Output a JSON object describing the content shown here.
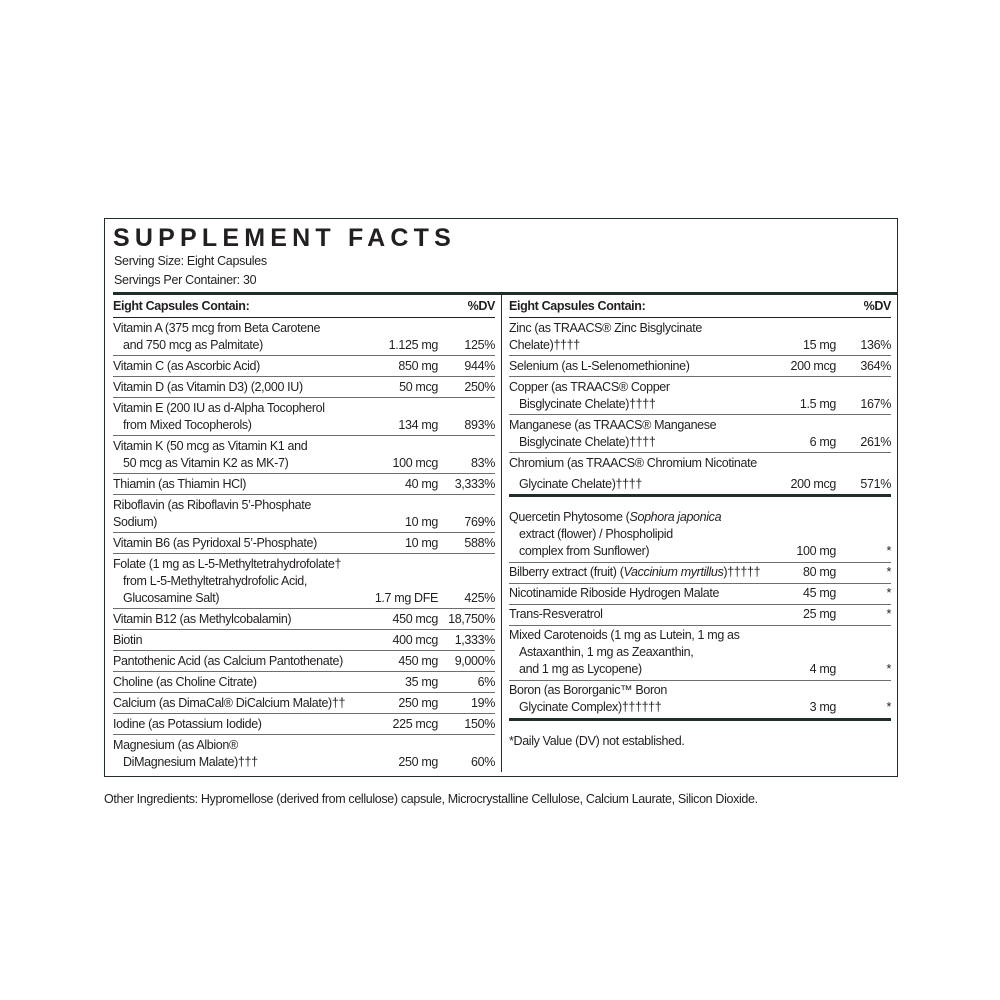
{
  "title": "SUPPLEMENT FACTS",
  "serving_size": "Serving Size: Eight Capsules",
  "servings_per_container": "Servings Per Container: 30",
  "left": {
    "header_label": "Eight Capsules Contain:",
    "header_dv": "%DV",
    "rows": [
      {
        "lines": [
          [
            {
              "t": "Vitamin A (375 mcg from Beta Carotene"
            }
          ],
          [
            {
              "t": "and 750 mcg as Palmitate)"
            }
          ]
        ],
        "amount": "1.125 mg",
        "dv": "125%"
      },
      {
        "lines": [
          [
            {
              "t": "Vitamin C (as Ascorbic Acid)"
            }
          ]
        ],
        "amount": "850 mg",
        "dv": "944%"
      },
      {
        "lines": [
          [
            {
              "t": "Vitamin D (as Vitamin D3) (2,000 IU)"
            }
          ]
        ],
        "amount": "50 mcg",
        "dv": "250%"
      },
      {
        "lines": [
          [
            {
              "t": "Vitamin E (200 IU as d-Alpha Tocopherol"
            }
          ],
          [
            {
              "t": "from Mixed Tocopherols)"
            }
          ]
        ],
        "amount": "134 mg",
        "dv": "893%"
      },
      {
        "lines": [
          [
            {
              "t": "Vitamin K (50 mcg as Vitamin K1 and"
            }
          ],
          [
            {
              "t": "50 mcg as Vitamin K2 as MK-7)"
            }
          ]
        ],
        "amount": "100 mcg",
        "dv": "83%"
      },
      {
        "lines": [
          [
            {
              "t": "Thiamin (as Thiamin HCl)"
            }
          ]
        ],
        "amount": "40 mg",
        "dv": "3,333%"
      },
      {
        "lines": [
          [
            {
              "t": "Riboflavin (as Riboflavin 5’-Phosphate Sodium)"
            }
          ]
        ],
        "amount": "10 mg",
        "dv": "769%"
      },
      {
        "lines": [
          [
            {
              "t": "Vitamin B6 (as Pyridoxal 5’-Phosphate)"
            }
          ]
        ],
        "amount": "10 mg",
        "dv": "588%"
      },
      {
        "lines": [
          [
            {
              "t": "Folate (1 mg as L-5-Methyltetrahydrofolate†"
            }
          ],
          [
            {
              "t": "from L-5-Methyltetrahydrofolic Acid,"
            }
          ],
          [
            {
              "t": "Glucosamine Salt)"
            }
          ]
        ],
        "amount": "1.7 mg DFE",
        "dv": "425%"
      },
      {
        "lines": [
          [
            {
              "t": "Vitamin B12 (as Methylcobalamin)"
            }
          ]
        ],
        "amount": "450 mcg",
        "dv": "18,750%"
      },
      {
        "lines": [
          [
            {
              "t": "Biotin"
            }
          ]
        ],
        "amount": "400 mcg",
        "dv": "1,333%"
      },
      {
        "lines": [
          [
            {
              "t": "Pantothenic Acid (as Calcium Pantothenate)"
            }
          ]
        ],
        "amount": "450 mg",
        "dv": "9,000%"
      },
      {
        "lines": [
          [
            {
              "t": "Choline (as Choline Citrate)"
            }
          ]
        ],
        "amount": "35 mg",
        "dv": "6%"
      },
      {
        "lines": [
          [
            {
              "t": "Calcium (as DimaCal® DiCalcium Malate)††"
            }
          ]
        ],
        "amount": "250 mg",
        "dv": "19%"
      },
      {
        "lines": [
          [
            {
              "t": "Iodine (as Potassium Iodide)"
            }
          ]
        ],
        "amount": "225 mcg",
        "dv": "150%"
      },
      {
        "lines": [
          [
            {
              "t": "Magnesium (as Albion®"
            }
          ],
          [
            {
              "t": "DiMagnesium Malate)†††"
            }
          ]
        ],
        "amount": "250 mg",
        "dv": "60%",
        "last": true
      }
    ]
  },
  "right": {
    "header_label": "Eight Capsules Contain:",
    "header_dv": "%DV",
    "rows": [
      {
        "lines": [
          [
            {
              "t": "Zinc (as TRAACS® Zinc Bisglycinate Chelate)††††"
            }
          ]
        ],
        "amount": "15 mg",
        "dv": "136%"
      },
      {
        "lines": [
          [
            {
              "t": "Selenium (as L-Selenomethionine)"
            }
          ]
        ],
        "amount": "200 mcg",
        "dv": "364%"
      },
      {
        "lines": [
          [
            {
              "t": "Copper (as TRAACS® Copper"
            }
          ],
          [
            {
              "t": "Bisglycinate Chelate)††††"
            }
          ]
        ],
        "amount": "1.5 mg",
        "dv": "167%"
      },
      {
        "lines": [
          [
            {
              "t": "Manganese (as TRAACS® Manganese"
            }
          ],
          [
            {
              "t": "Bisglycinate Chelate)††††"
            }
          ]
        ],
        "amount": "6 mg",
        "dv": "261%"
      },
      {
        "lines": [
          [
            {
              "t": "Chromium (as TRAACS® Chromium Nicotinate"
            }
          ],
          [
            {
              "t": "Glycinate Chelate)††††"
            }
          ]
        ],
        "amount": "200 mcg",
        "dv": "571%",
        "thick": true,
        "tall": true
      },
      {
        "lines": [
          [
            {
              "t": "Quercetin Phytosome ("
            },
            {
              "t": "Sophora japonica",
              "i": true
            }
          ],
          [
            {
              "t": "extract (flower) / Phospholipid"
            }
          ],
          [
            {
              "t": "complex from Sunflower)"
            }
          ]
        ],
        "amount": "100 mg",
        "dv": "*",
        "gap": true
      },
      {
        "lines": [
          [
            {
              "t": "Bilberry extract (fruit) ("
            },
            {
              "t": "Vaccinium myrtillus",
              "i": true
            },
            {
              "t": ")†††††"
            }
          ]
        ],
        "amount": "80 mg",
        "dv": "*"
      },
      {
        "lines": [
          [
            {
              "t": "Nicotinamide Riboside Hydrogen Malate"
            }
          ]
        ],
        "amount": "45 mg",
        "dv": "*"
      },
      {
        "lines": [
          [
            {
              "t": "Trans-Resveratrol"
            }
          ]
        ],
        "amount": "25 mg",
        "dv": "*"
      },
      {
        "lines": [
          [
            {
              "t": "Mixed Carotenoids (1 mg as Lutein, 1 mg as"
            }
          ],
          [
            {
              "t": "Astaxanthin, 1 mg as Zeaxanthin,"
            }
          ],
          [
            {
              "t": "and 1 mg as Lycopene)"
            }
          ]
        ],
        "amount": "4 mg",
        "dv": "*"
      },
      {
        "lines": [
          [
            {
              "t": "Boron (as Bororganic™ Boron"
            }
          ],
          [
            {
              "t": "Glycinate Complex)††††††"
            }
          ]
        ],
        "amount": "3 mg",
        "dv": "*",
        "thick": true
      }
    ],
    "footnote": "*Daily Value (DV) not established."
  },
  "other_ingredients": "Other Ingredients: Hypromellose (derived from cellulose) capsule, Microcrystalline Cellulose, Calcium Laurate, Silicon Dioxide."
}
